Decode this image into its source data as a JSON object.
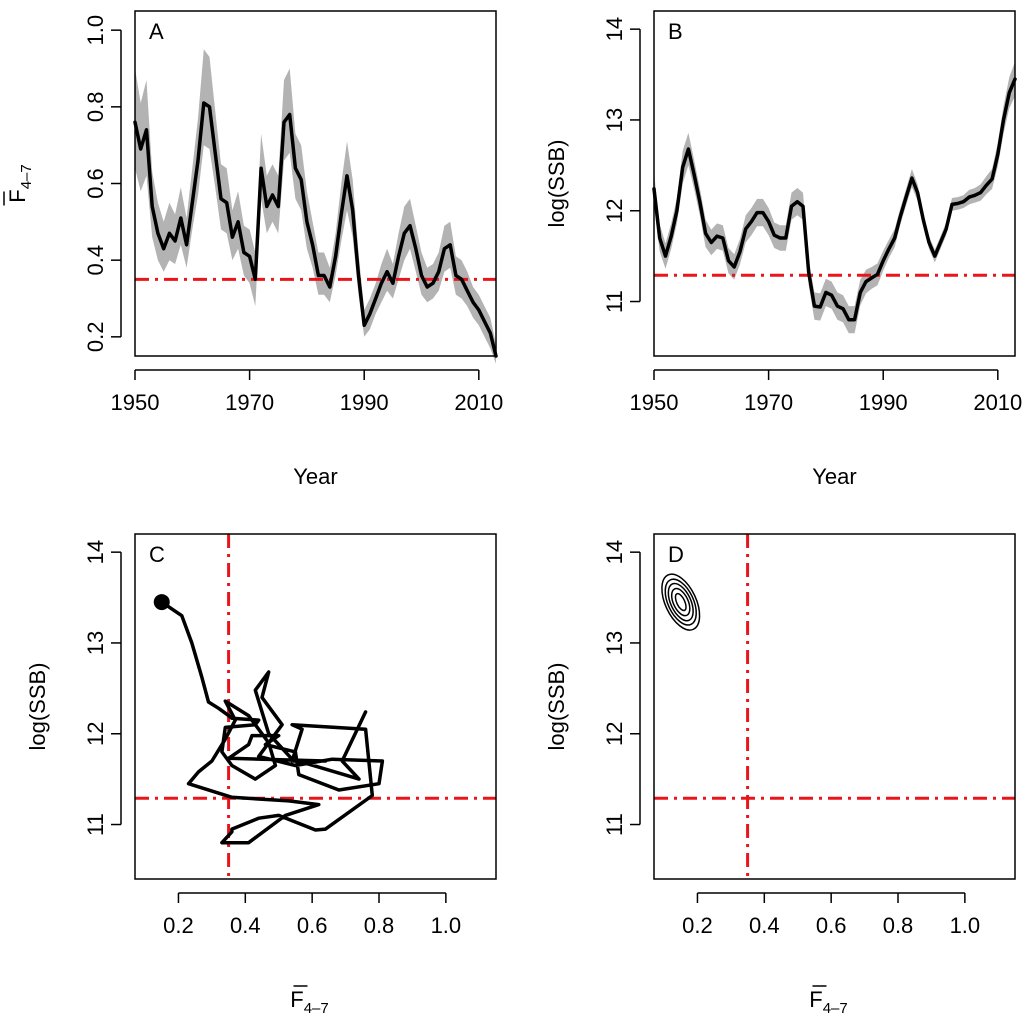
{
  "chart_data": [
    {
      "panel": "A",
      "type": "line",
      "xlabel": "Year",
      "ylabel_main": "F",
      "ylabel_sub": "4–7",
      "xlim": [
        1950,
        2013
      ],
      "ylim": [
        0.15,
        1.05
      ],
      "xticks": [
        1950,
        1970,
        1990,
        2010
      ],
      "yticks": [
        0.2,
        0.4,
        0.6,
        0.8,
        1.0
      ],
      "ytick_labels": [
        "0.2",
        "0.4",
        "0.6",
        "0.8",
        "1.0"
      ],
      "reference_y": 0.35,
      "series": [
        {
          "x": [
            1950,
            1951,
            1952,
            1953,
            1954,
            1955,
            1956,
            1957,
            1958,
            1959,
            1960,
            1961,
            1962,
            1963,
            1964,
            1965,
            1966,
            1967,
            1968,
            1969,
            1970,
            1971,
            1972,
            1973,
            1974,
            1975,
            1976,
            1977,
            1978,
            1979,
            1980,
            1981,
            1982,
            1983,
            1984,
            1985,
            1986,
            1987,
            1988,
            1989,
            1990,
            1991,
            1992,
            1993,
            1994,
            1995,
            1996,
            1997,
            1998,
            1999,
            2000,
            2001,
            2002,
            2003,
            2004,
            2005,
            2006,
            2007,
            2008,
            2009,
            2010,
            2011,
            2012,
            2013
          ],
          "y": [
            0.76,
            0.69,
            0.74,
            0.54,
            0.47,
            0.43,
            0.47,
            0.45,
            0.51,
            0.44,
            0.55,
            0.66,
            0.81,
            0.8,
            0.68,
            0.56,
            0.55,
            0.46,
            0.5,
            0.42,
            0.41,
            0.35,
            0.64,
            0.54,
            0.57,
            0.54,
            0.76,
            0.78,
            0.64,
            0.61,
            0.5,
            0.44,
            0.36,
            0.36,
            0.33,
            0.41,
            0.52,
            0.62,
            0.53,
            0.36,
            0.23,
            0.26,
            0.3,
            0.34,
            0.37,
            0.34,
            0.41,
            0.47,
            0.49,
            0.43,
            0.36,
            0.33,
            0.34,
            0.37,
            0.43,
            0.44,
            0.36,
            0.35,
            0.32,
            0.29,
            0.27,
            0.24,
            0.21,
            0.15
          ],
          "lower": [
            0.64,
            0.58,
            0.62,
            0.46,
            0.4,
            0.37,
            0.4,
            0.39,
            0.44,
            0.38,
            0.48,
            0.57,
            0.7,
            0.69,
            0.59,
            0.48,
            0.47,
            0.4,
            0.43,
            0.36,
            0.34,
            0.28,
            0.56,
            0.47,
            0.5,
            0.47,
            0.66,
            0.68,
            0.56,
            0.53,
            0.43,
            0.38,
            0.31,
            0.31,
            0.29,
            0.36,
            0.45,
            0.53,
            0.46,
            0.31,
            0.2,
            0.22,
            0.26,
            0.29,
            0.32,
            0.3,
            0.35,
            0.4,
            0.43,
            0.37,
            0.31,
            0.29,
            0.3,
            0.32,
            0.37,
            0.38,
            0.31,
            0.3,
            0.28,
            0.25,
            0.23,
            0.2,
            0.17,
            0.13
          ],
          "upper": [
            0.9,
            0.81,
            0.87,
            0.63,
            0.55,
            0.5,
            0.55,
            0.52,
            0.59,
            0.51,
            0.64,
            0.77,
            0.95,
            0.93,
            0.79,
            0.65,
            0.64,
            0.53,
            0.58,
            0.49,
            0.48,
            0.42,
            0.73,
            0.62,
            0.65,
            0.62,
            0.87,
            0.9,
            0.73,
            0.7,
            0.58,
            0.5,
            0.42,
            0.42,
            0.38,
            0.47,
            0.6,
            0.71,
            0.61,
            0.42,
            0.27,
            0.3,
            0.34,
            0.39,
            0.43,
            0.39,
            0.47,
            0.54,
            0.56,
            0.49,
            0.42,
            0.38,
            0.39,
            0.42,
            0.49,
            0.5,
            0.41,
            0.4,
            0.37,
            0.33,
            0.31,
            0.28,
            0.25,
            0.18
          ]
        }
      ]
    },
    {
      "panel": "B",
      "type": "line",
      "xlabel": "Year",
      "ylabel": "log(SSB)",
      "xlim": [
        1950,
        2013
      ],
      "ylim": [
        10.4,
        14.2
      ],
      "xticks": [
        1950,
        1970,
        1990,
        2010
      ],
      "yticks": [
        11,
        12,
        13,
        14
      ],
      "ytick_labels": [
        "11",
        "12",
        "13",
        "14"
      ],
      "reference_y": 11.29,
      "series": [
        {
          "x": [
            1950,
            1951,
            1952,
            1953,
            1954,
            1955,
            1956,
            1957,
            1958,
            1959,
            1960,
            1961,
            1962,
            1963,
            1964,
            1965,
            1966,
            1967,
            1968,
            1969,
            1970,
            1971,
            1972,
            1973,
            1974,
            1975,
            1976,
            1977,
            1978,
            1979,
            1980,
            1981,
            1982,
            1983,
            1984,
            1985,
            1986,
            1987,
            1988,
            1989,
            1990,
            1991,
            1992,
            1993,
            1994,
            1995,
            1996,
            1997,
            1998,
            1999,
            2000,
            2001,
            2002,
            2003,
            2004,
            2005,
            2006,
            2007,
            2008,
            2009,
            2010,
            2011,
            2012,
            2013
          ],
          "y": [
            12.24,
            11.7,
            11.5,
            11.72,
            12.0,
            12.48,
            12.68,
            12.4,
            12.1,
            11.75,
            11.65,
            11.72,
            11.7,
            11.45,
            11.38,
            11.55,
            11.8,
            11.88,
            11.98,
            11.98,
            11.88,
            11.73,
            11.7,
            11.7,
            12.05,
            12.1,
            12.05,
            11.32,
            10.95,
            10.94,
            11.1,
            11.07,
            10.95,
            10.92,
            10.8,
            10.8,
            11.1,
            11.22,
            11.26,
            11.3,
            11.45,
            11.58,
            11.7,
            11.94,
            12.15,
            12.36,
            12.2,
            11.9,
            11.65,
            11.5,
            11.65,
            11.8,
            12.07,
            12.08,
            12.1,
            12.15,
            12.17,
            12.2,
            12.28,
            12.35,
            12.62,
            13.0,
            13.3,
            13.45
          ],
          "lower": [
            12.05,
            11.55,
            11.36,
            11.58,
            11.86,
            12.3,
            12.5,
            12.24,
            11.95,
            11.6,
            11.51,
            11.58,
            11.56,
            11.31,
            11.24,
            11.41,
            11.65,
            11.73,
            11.83,
            11.83,
            11.73,
            11.59,
            11.56,
            11.56,
            11.9,
            11.95,
            11.9,
            11.18,
            10.8,
            10.79,
            10.95,
            10.92,
            10.8,
            10.77,
            10.65,
            10.65,
            10.96,
            11.09,
            11.14,
            11.18,
            11.34,
            11.48,
            11.6,
            11.85,
            12.06,
            12.26,
            12.11,
            11.82,
            11.58,
            11.43,
            11.58,
            11.73,
            12.0,
            12.01,
            12.03,
            12.07,
            12.09,
            12.11,
            12.18,
            12.24,
            12.49,
            12.85,
            13.13,
            13.26
          ],
          "upper": [
            12.42,
            11.85,
            11.64,
            11.86,
            12.14,
            12.66,
            12.86,
            12.56,
            12.25,
            11.9,
            11.79,
            11.86,
            11.84,
            11.59,
            11.52,
            11.69,
            11.95,
            12.03,
            12.13,
            12.13,
            12.03,
            11.87,
            11.84,
            11.84,
            12.2,
            12.25,
            12.2,
            11.46,
            11.1,
            11.09,
            11.25,
            11.22,
            11.1,
            11.07,
            10.95,
            10.95,
            11.24,
            11.35,
            11.38,
            11.42,
            11.56,
            11.68,
            11.8,
            12.03,
            12.24,
            12.46,
            12.29,
            11.98,
            11.72,
            11.57,
            11.72,
            11.87,
            12.14,
            12.15,
            12.17,
            12.23,
            12.25,
            12.29,
            12.38,
            12.46,
            12.75,
            13.15,
            13.47,
            13.64
          ]
        }
      ]
    },
    {
      "panel": "C",
      "type": "line",
      "xlabel_main": "F",
      "xlabel_sub": "4–7",
      "ylabel": "log(SSB)",
      "xlim": [
        0.07,
        1.15
      ],
      "ylim": [
        10.4,
        14.2
      ],
      "xticks": [
        0.2,
        0.4,
        0.6,
        0.8,
        1.0
      ],
      "xtick_labels": [
        "0.2",
        "0.4",
        "0.6",
        "0.8",
        "1.0"
      ],
      "yticks": [
        11,
        12,
        13,
        14
      ],
      "ytick_labels": [
        "11",
        "12",
        "13",
        "14"
      ],
      "reference_x": 0.35,
      "reference_y": 11.29,
      "end_point": [
        0.15,
        13.45
      ],
      "series": [
        {
          "x": [
            0.76,
            0.69,
            0.74,
            0.54,
            0.47,
            0.43,
            0.47,
            0.45,
            0.51,
            0.44,
            0.55,
            0.66,
            0.81,
            0.8,
            0.68,
            0.56,
            0.55,
            0.46,
            0.5,
            0.42,
            0.41,
            0.35,
            0.64,
            0.54,
            0.57,
            0.54,
            0.76,
            0.78,
            0.64,
            0.61,
            0.5,
            0.44,
            0.36,
            0.36,
            0.33,
            0.41,
            0.52,
            0.62,
            0.53,
            0.36,
            0.23,
            0.26,
            0.3,
            0.34,
            0.37,
            0.34,
            0.41,
            0.47,
            0.49,
            0.43,
            0.36,
            0.33,
            0.34,
            0.37,
            0.43,
            0.44,
            0.36,
            0.35,
            0.32,
            0.29,
            0.27,
            0.24,
            0.21,
            0.15
          ],
          "y": [
            12.24,
            11.7,
            11.5,
            11.72,
            12.0,
            12.48,
            12.68,
            12.4,
            12.1,
            11.75,
            11.65,
            11.72,
            11.7,
            11.45,
            11.38,
            11.55,
            11.8,
            11.88,
            11.98,
            11.98,
            11.88,
            11.73,
            11.7,
            11.7,
            12.05,
            12.1,
            12.05,
            11.32,
            10.95,
            10.94,
            11.1,
            11.07,
            10.95,
            10.92,
            10.8,
            10.8,
            11.1,
            11.22,
            11.26,
            11.3,
            11.45,
            11.58,
            11.7,
            11.94,
            12.15,
            12.36,
            12.2,
            11.9,
            11.65,
            11.5,
            11.65,
            11.8,
            12.07,
            12.08,
            12.1,
            12.15,
            12.17,
            12.2,
            12.28,
            12.35,
            12.62,
            13.0,
            13.3,
            13.45
          ]
        }
      ]
    },
    {
      "panel": "D",
      "type": "scatter",
      "xlabel_main": "F",
      "xlabel_sub": "4–7",
      "ylabel": "log(SSB)",
      "xlim": [
        0.07,
        1.15
      ],
      "ylim": [
        10.4,
        14.2
      ],
      "xticks": [
        0.2,
        0.4,
        0.6,
        0.8,
        1.0
      ],
      "xtick_labels": [
        "0.2",
        "0.4",
        "0.6",
        "0.8",
        "1.0"
      ],
      "yticks": [
        11,
        12,
        13,
        14
      ],
      "ytick_labels": [
        "11",
        "12",
        "13",
        "14"
      ],
      "reference_x": 0.35,
      "reference_y": 11.29,
      "contour_center": [
        0.15,
        13.45
      ],
      "contour_rx": [
        0.012,
        0.022,
        0.03,
        0.038,
        0.046
      ],
      "contour_ry": [
        0.1,
        0.16,
        0.22,
        0.27,
        0.33
      ]
    }
  ],
  "colors": {
    "line": "#000000",
    "band": "#b3b3b3",
    "reference": "#e8161b"
  }
}
